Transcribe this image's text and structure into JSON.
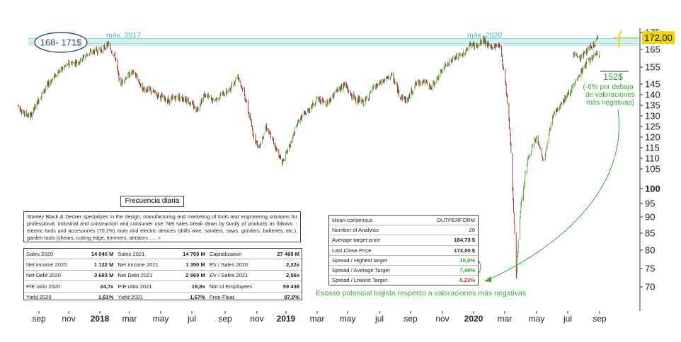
{
  "chart_data": {
    "type": "candlestick",
    "title": "",
    "xlabel": "",
    "ylabel": "",
    "ylim": [
      68,
      176
    ],
    "y_ticks": [
      70,
      75,
      80,
      85,
      90,
      95,
      100,
      105,
      110,
      115,
      120,
      125,
      130,
      135,
      140,
      145,
      155,
      165,
      175
    ],
    "y_ticks_bold": [
      100
    ],
    "x_ticks": [
      {
        "label": "sep",
        "date": "2017-09"
      },
      {
        "label": "nov",
        "date": "2017-11"
      },
      {
        "label": "2018",
        "date": "2018-01",
        "bold": true
      },
      {
        "label": "mar",
        "date": "2018-03"
      },
      {
        "label": "may",
        "date": "2018-05"
      },
      {
        "label": "jul",
        "date": "2018-07"
      },
      {
        "label": "sep",
        "date": "2018-09"
      },
      {
        "label": "nov",
        "date": "2018-11"
      },
      {
        "label": "2019",
        "date": "2019-01",
        "bold": true
      },
      {
        "label": "mar",
        "date": "2019-03"
      },
      {
        "label": "may",
        "date": "2019-05"
      },
      {
        "label": "jul",
        "date": "2019-07"
      },
      {
        "label": "sep",
        "date": "2019-09"
      },
      {
        "label": "nov",
        "date": "2019-11"
      },
      {
        "label": "2020",
        "date": "2020-01",
        "bold": true
      },
      {
        "label": "mar",
        "date": "2020-03"
      },
      {
        "label": "may",
        "date": "2020-05"
      },
      {
        "label": "jul",
        "date": "2020-07"
      },
      {
        "label": "sep",
        "date": "2020-09"
      }
    ],
    "price_path": [
      [
        "2017-07-20",
        135
      ],
      [
        "2017-08-01",
        131
      ],
      [
        "2017-08-15",
        130
      ],
      [
        "2017-09-01",
        138
      ],
      [
        "2017-09-20",
        145
      ],
      [
        "2017-10-10",
        152
      ],
      [
        "2017-11-01",
        157
      ],
      [
        "2017-11-20",
        158
      ],
      [
        "2017-12-10",
        163
      ],
      [
        "2018-01-05",
        165
      ],
      [
        "2018-01-18",
        168
      ],
      [
        "2018-02-01",
        160
      ],
      [
        "2018-02-10",
        145
      ],
      [
        "2018-02-25",
        150
      ],
      [
        "2018-03-10",
        152
      ],
      [
        "2018-03-25",
        143
      ],
      [
        "2018-04-10",
        142
      ],
      [
        "2018-04-25",
        140
      ],
      [
        "2018-05-15",
        137
      ],
      [
        "2018-06-01",
        139
      ],
      [
        "2018-06-20",
        138
      ],
      [
        "2018-07-10",
        133
      ],
      [
        "2018-07-25",
        140
      ],
      [
        "2018-08-10",
        137
      ],
      [
        "2018-08-25",
        140
      ],
      [
        "2018-09-10",
        142
      ],
      [
        "2018-09-25",
        150
      ],
      [
        "2018-10-10",
        138
      ],
      [
        "2018-10-25",
        121
      ],
      [
        "2018-11-05",
        115
      ],
      [
        "2018-11-20",
        125
      ],
      [
        "2018-12-05",
        118
      ],
      [
        "2018-12-24",
        108
      ],
      [
        "2019-01-10",
        117
      ],
      [
        "2019-01-25",
        128
      ],
      [
        "2019-02-10",
        132
      ],
      [
        "2019-03-01",
        138
      ],
      [
        "2019-03-20",
        136
      ],
      [
        "2019-04-10",
        142
      ],
      [
        "2019-04-25",
        145
      ],
      [
        "2019-05-10",
        139
      ],
      [
        "2019-06-01",
        136
      ],
      [
        "2019-06-20",
        143
      ],
      [
        "2019-07-10",
        147
      ],
      [
        "2019-07-25",
        150
      ],
      [
        "2019-08-10",
        140
      ],
      [
        "2019-08-25",
        137
      ],
      [
        "2019-09-10",
        145
      ],
      [
        "2019-09-25",
        147
      ],
      [
        "2019-10-10",
        143
      ],
      [
        "2019-10-25",
        150
      ],
      [
        "2019-11-10",
        157
      ],
      [
        "2019-11-25",
        160
      ],
      [
        "2019-12-10",
        162
      ],
      [
        "2019-12-26",
        168
      ],
      [
        "2020-01-10",
        167
      ],
      [
        "2020-01-20",
        171
      ],
      [
        "2020-02-01",
        166
      ],
      [
        "2020-02-20",
        168
      ],
      [
        "2020-03-01",
        150
      ],
      [
        "2020-03-10",
        125
      ],
      [
        "2020-03-23",
        72
      ],
      [
        "2020-04-01",
        95
      ],
      [
        "2020-04-15",
        110
      ],
      [
        "2020-05-01",
        120
      ],
      [
        "2020-05-15",
        108
      ],
      [
        "2020-06-01",
        130
      ],
      [
        "2020-06-15",
        135
      ],
      [
        "2020-07-01",
        140
      ],
      [
        "2020-07-15",
        145
      ],
      [
        "2020-08-01",
        155
      ],
      [
        "2020-08-15",
        160
      ],
      [
        "2020-09-01",
        163
      ],
      [
        "2020-09-15",
        160
      ],
      [
        "2020-10-01",
        165
      ],
      [
        "2020-10-15",
        168
      ],
      [
        "2020-10-22",
        172
      ]
    ],
    "last_price": "172,00",
    "bands": [
      {
        "name": "máx. 2017",
        "value": 168
      },
      {
        "name": "máx. 2020",
        "value": 171
      }
    ],
    "band_lines": [
      167.5,
      168.5,
      169.5,
      170.5,
      171.5
    ],
    "annotations": {
      "range_label": "168- 171$",
      "max_2017": "máx. 2017",
      "max_2020": "máx. 2020",
      "target_price": "152$",
      "target_note_1": "(-6% por debajo",
      "target_note_2": "de valoraciones",
      "target_note_3": "más negativas)",
      "bottom_note": "Escaso potencial bajista respecto a valoraciones más negativas"
    },
    "target_level": 152,
    "colors": {
      "up": "#4a9a2a",
      "down": "#9a2020",
      "band": "#7fd8d8",
      "note": "#3aa63a",
      "highlight": "#f2d600"
    },
    "grid": false
  },
  "frequency_label": "Frecuencia diaria",
  "description": "Stanley Black & Decker specializes in the design, manufacturing and marketing of tools and engineering solutions for professional, industrial and construction and consumer use. Net sales break down by family of products as follows: - electric tools and accessories (70.2%) tools and electric devices (drills wire, sanders, saws, grinders, batteries, etc.), garden tools (shears, cutting edge, trimmers, aerators , ... »",
  "fundamentals": [
    [
      {
        "label": "Sales 2020",
        "value": "14 040 M"
      },
      {
        "label": "Sales 2021",
        "value": "14 769 M"
      },
      {
        "label": "Capitalization",
        "value": "27 465 M"
      }
    ],
    [
      {
        "label": "Net income 2020",
        "value": "1 122 M"
      },
      {
        "label": "Net income 2021",
        "value": "1 350 M"
      },
      {
        "label": "EV / Sales 2020",
        "value": "2,22x"
      }
    ],
    [
      {
        "label": "Net Debt 2020",
        "value": "3 683 M"
      },
      {
        "label": "Net Debt 2021",
        "value": "2 969 M"
      },
      {
        "label": "EV / Sales 2021",
        "value": "2,06x"
      }
    ],
    [
      {
        "label": "P/E ratio 2020",
        "value": "24,7x"
      },
      {
        "label": "P/E ratio 2021",
        "value": "19,8x"
      },
      {
        "label": "Nbr of Employees",
        "value": "59 438"
      }
    ],
    [
      {
        "label": "Yield 2020",
        "value": "1,61%"
      },
      {
        "label": "Yield 2021",
        "value": "1,67%"
      },
      {
        "label": "Free-Float",
        "value": "87,0%"
      }
    ]
  ],
  "consensus": [
    {
      "label": "Mean consensus",
      "value": "OUTPERFORM",
      "style": ""
    },
    {
      "label": "Number of Analysts",
      "value": "20",
      "style": ""
    },
    {
      "label": "Average target price",
      "value": "184,73 $",
      "style": "b"
    },
    {
      "label": "Last Close Price",
      "value": "172,00 $",
      "style": "b"
    },
    {
      "label": "Spread / Highest target",
      "value": "10,0%",
      "style": "pos"
    },
    {
      "label": "Spread / Average Target",
      "value": "7,40%",
      "style": "pos"
    },
    {
      "label": "Spread / Lowest Target",
      "value": "-5,23%",
      "style": "neg"
    }
  ]
}
